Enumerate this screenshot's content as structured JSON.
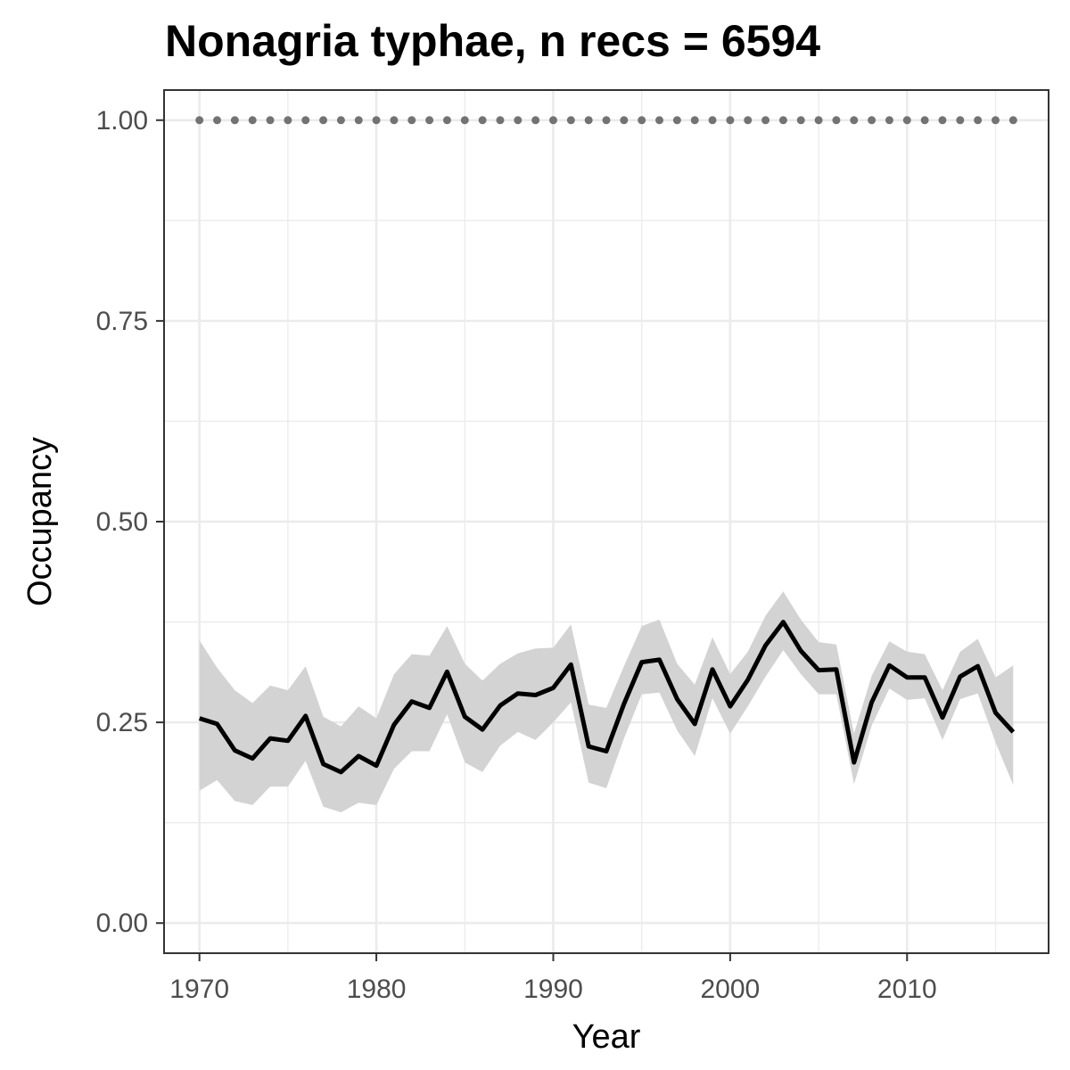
{
  "chart_data": {
    "type": "line",
    "title": "Nonagria typhae, n recs = 6594",
    "xlabel": "Year",
    "ylabel": "Occupancy",
    "xlim": [
      1968,
      2018
    ],
    "ylim": [
      -0.0375,
      1.0375
    ],
    "x_ticks": [
      1970,
      1980,
      1990,
      2000,
      2010
    ],
    "x_tick_labels": [
      "1970",
      "1980",
      "1990",
      "2000",
      "2010"
    ],
    "y_ticks": [
      0,
      0.25,
      0.5,
      0.75,
      1
    ],
    "y_tick_labels": [
      "0.00",
      "0.25",
      "0.50",
      "0.75",
      "1.00"
    ],
    "grid": true,
    "series": [
      {
        "x": [
          1970,
          1971,
          1972,
          1973,
          1974,
          1975,
          1976,
          1977,
          1978,
          1979,
          1980,
          1981,
          1982,
          1983,
          1984,
          1985,
          1986,
          1987,
          1988,
          1989,
          1990,
          1991,
          1992,
          1993,
          1994,
          1995,
          1996,
          1997,
          1998,
          1999,
          2000,
          2001,
          2002,
          2003,
          2004,
          2005,
          2006,
          2007,
          2008,
          2009,
          2010,
          2011,
          2012,
          2013,
          2014,
          2015,
          2016
        ],
        "values": [
          0.255,
          0.248,
          0.215,
          0.205,
          0.23,
          0.227,
          0.258,
          0.198,
          0.188,
          0.208,
          0.196,
          0.247,
          0.276,
          0.268,
          0.313,
          0.257,
          0.241,
          0.271,
          0.286,
          0.284,
          0.293,
          0.322,
          0.22,
          0.214,
          0.273,
          0.325,
          0.328,
          0.279,
          0.248,
          0.316,
          0.27,
          0.303,
          0.346,
          0.375,
          0.339,
          0.315,
          0.316,
          0.2,
          0.275,
          0.321,
          0.306,
          0.306,
          0.256,
          0.307,
          0.32,
          0.262,
          0.238
        ],
        "lower": [
          0.165,
          0.178,
          0.152,
          0.147,
          0.17,
          0.17,
          0.202,
          0.145,
          0.138,
          0.15,
          0.147,
          0.192,
          0.214,
          0.214,
          0.26,
          0.2,
          0.188,
          0.221,
          0.238,
          0.228,
          0.25,
          0.275,
          0.175,
          0.168,
          0.23,
          0.285,
          0.287,
          0.24,
          0.208,
          0.28,
          0.236,
          0.27,
          0.307,
          0.34,
          0.31,
          0.285,
          0.285,
          0.173,
          0.246,
          0.292,
          0.278,
          0.28,
          0.228,
          0.279,
          0.286,
          0.225,
          0.172
        ],
        "upper": [
          0.352,
          0.318,
          0.29,
          0.274,
          0.296,
          0.29,
          0.32,
          0.257,
          0.245,
          0.27,
          0.255,
          0.31,
          0.335,
          0.333,
          0.37,
          0.323,
          0.302,
          0.323,
          0.336,
          0.342,
          0.343,
          0.372,
          0.272,
          0.268,
          0.32,
          0.37,
          0.378,
          0.323,
          0.297,
          0.356,
          0.31,
          0.338,
          0.383,
          0.413,
          0.378,
          0.35,
          0.347,
          0.236,
          0.308,
          0.351,
          0.338,
          0.335,
          0.29,
          0.338,
          0.354,
          0.306,
          0.321
        ]
      },
      {
        "x": [
          1970,
          1971,
          1972,
          1973,
          1974,
          1975,
          1976,
          1977,
          1978,
          1979,
          1980,
          1981,
          1982,
          1983,
          1984,
          1985,
          1986,
          1987,
          1988,
          1989,
          1990,
          1991,
          1992,
          1993,
          1994,
          1995,
          1996,
          1997,
          1998,
          1999,
          2000,
          2001,
          2002,
          2003,
          2004,
          2005,
          2006,
          2007,
          2008,
          2009,
          2010,
          2011,
          2012,
          2013,
          2014,
          2015,
          2016
        ],
        "values": [
          1,
          1,
          1,
          1,
          1,
          1,
          1,
          1,
          1,
          1,
          1,
          1,
          1,
          1,
          1,
          1,
          1,
          1,
          1,
          1,
          1,
          1,
          1,
          1,
          1,
          1,
          1,
          1,
          1,
          1,
          1,
          1,
          1,
          1,
          1,
          1,
          1,
          1,
          1,
          1,
          1,
          1,
          1,
          1,
          1,
          1,
          1
        ]
      }
    ],
    "colors": {
      "line": "#000000",
      "ribbon": "#d3d3d3",
      "dotted": "#737373",
      "grid": "#ebebeb",
      "panel_border": "#333333",
      "tick_label": "#4d4d4d"
    }
  }
}
